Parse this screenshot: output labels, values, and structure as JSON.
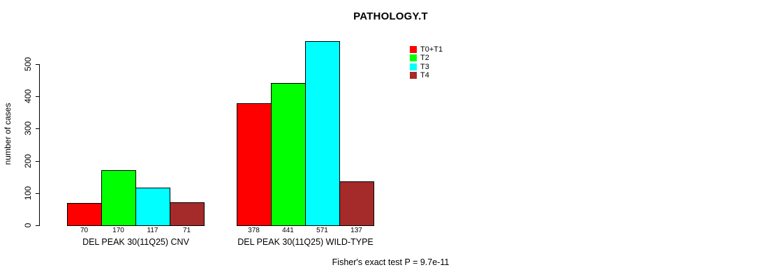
{
  "title": "PATHOLOGY.T",
  "y_axis_label": "number of cases",
  "footer_note": "Fisher's exact test P = 9.7e-11",
  "legend": {
    "position": "top-right",
    "items": [
      {
        "label": "T0+T1",
        "color": "#FF0000"
      },
      {
        "label": "T2",
        "color": "#00FF00"
      },
      {
        "label": "T3",
        "color": "#00FFFF"
      },
      {
        "label": "T4",
        "color": "#A52A2A"
      }
    ]
  },
  "chart_data": {
    "type": "bar",
    "title": "PATHOLOGY.T",
    "xlabel": "",
    "ylabel": "number of cases",
    "ylim": [
      0,
      500
    ],
    "yticks": [
      0,
      100,
      200,
      300,
      400,
      500
    ],
    "grid": false,
    "legend_position": "top-right",
    "bar_value_labels": true,
    "series": [
      "T0+T1",
      "T2",
      "T3",
      "T4"
    ],
    "colors": [
      "#FF0000",
      "#00FF00",
      "#00FFFF",
      "#A52A2A"
    ],
    "categories": [
      "DEL PEAK 30(11Q25) CNV",
      "DEL PEAK 30(11Q25) WILD-TYPE"
    ],
    "groups": [
      {
        "category": "DEL PEAK 30(11Q25) CNV",
        "values": [
          70,
          170,
          117,
          71
        ]
      },
      {
        "category": "DEL PEAK 30(11Q25) WILD-TYPE",
        "values": [
          378,
          441,
          571,
          137
        ]
      }
    ],
    "annotation": "Fisher's exact test P = 9.7e-11"
  }
}
